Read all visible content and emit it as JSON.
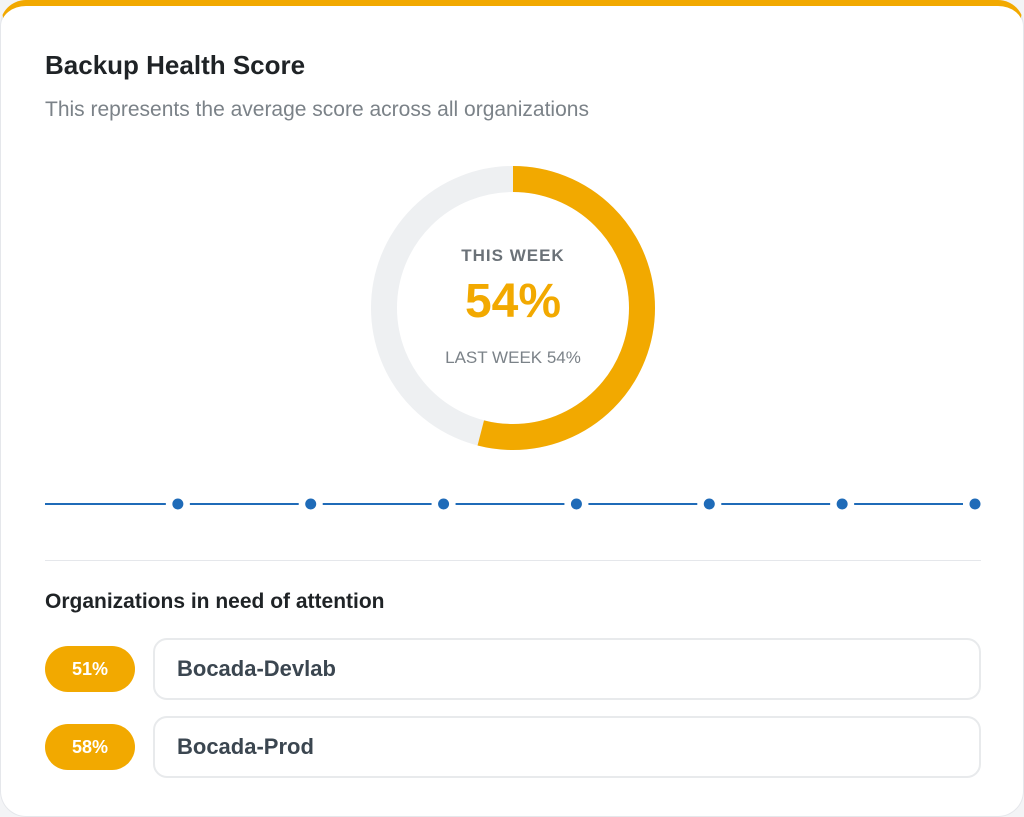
{
  "widget": {
    "title": "Backup Health Score",
    "subtitle": "This represents the average score across all organizations"
  },
  "gauge": {
    "label": "THIS WEEK",
    "value_text": "54%",
    "value": 54,
    "last_week_text": "LAST WEEK 54%",
    "fill_color": "#f2a900",
    "track_color": "#eef0f2"
  },
  "timeline": {
    "points": 7,
    "color": "#1f6bb8"
  },
  "attention": {
    "title": "Organizations in need of attention",
    "organizations": [
      {
        "score": "51%",
        "name": "Bocada-Devlab"
      },
      {
        "score": "58%",
        "name": "Bocada-Prod"
      }
    ]
  }
}
